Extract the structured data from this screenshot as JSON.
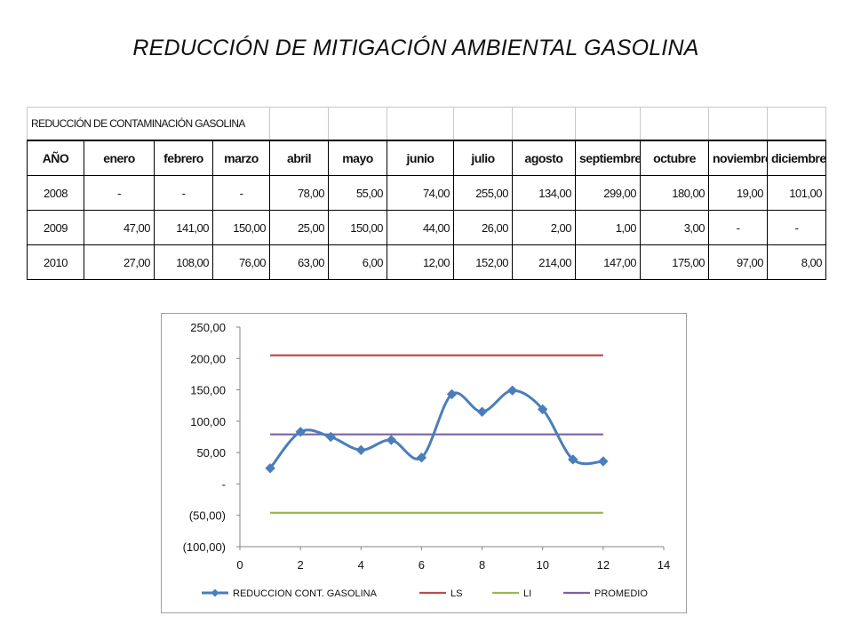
{
  "slide_title": "REDUCCIÓN DE MITIGACIÓN AMBIENTAL GASOLINA",
  "table": {
    "caption": "REDUCCIÓN DE CONTAMINACIÓN GASOLINA",
    "headers": [
      "AÑO",
      "enero",
      "febrero",
      "marzo",
      "abril",
      "mayo",
      "junio",
      "julio",
      "agosto",
      "septiembre",
      "octubre",
      "noviembre",
      "diciembre"
    ],
    "rows": [
      [
        "2008",
        "-",
        "-",
        "-",
        "78,00",
        "55,00",
        "74,00",
        "255,00",
        "134,00",
        "299,00",
        "180,00",
        "19,00",
        "101,00"
      ],
      [
        "2009",
        "47,00",
        "141,00",
        "150,00",
        "25,00",
        "150,00",
        "44,00",
        "26,00",
        "2,00",
        "1,00",
        "3,00",
        "-",
        "-"
      ],
      [
        "2010",
        "27,00",
        "108,00",
        "76,00",
        "63,00",
        "6,00",
        "12,00",
        "152,00",
        "214,00",
        "147,00",
        "175,00",
        "97,00",
        "8,00"
      ]
    ]
  },
  "chart_data": {
    "type": "line",
    "xlim": [
      0,
      14
    ],
    "ylim": [
      -100,
      250
    ],
    "x_ticks": [
      "0",
      "2",
      "4",
      "6",
      "8",
      "10",
      "12",
      "14"
    ],
    "y_ticks": [
      "250,00",
      "200,00",
      "150,00",
      "100,00",
      "50,00",
      "-",
      "(50,00)",
      "(100,00)"
    ],
    "y_tick_values": [
      250,
      200,
      150,
      100,
      50,
      0,
      -50,
      -100
    ],
    "grid": false,
    "legend_position": "bottom",
    "series": [
      {
        "name": "REDUCCION CONT. GASOLINA",
        "color": "#4a7ebb",
        "marker": "diamond",
        "smooth": true,
        "x": [
          1,
          2,
          3,
          4,
          5,
          6,
          7,
          8,
          9,
          10,
          11,
          12
        ],
        "y": [
          25,
          83,
          75,
          54,
          70,
          42,
          143,
          115,
          149,
          119,
          39,
          36
        ]
      },
      {
        "name": "LS",
        "color": "#be4b48",
        "x": [
          1,
          12
        ],
        "y": [
          205,
          205
        ]
      },
      {
        "name": "LI",
        "color": "#98b954",
        "x": [
          1,
          12
        ],
        "y": [
          -46,
          -46
        ]
      },
      {
        "name": "PROMEDIO",
        "color": "#7d60a0",
        "x": [
          1,
          12
        ],
        "y": [
          79,
          79
        ]
      }
    ]
  }
}
